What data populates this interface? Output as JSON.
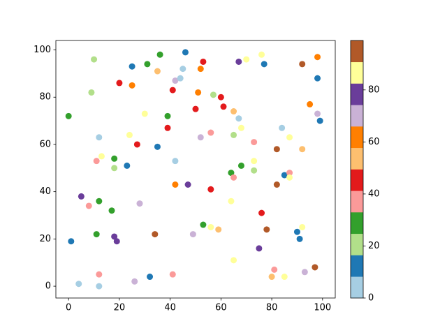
{
  "chart_data": {
    "type": "scatter",
    "x": [
      0,
      1,
      4,
      5,
      8,
      9,
      10,
      11,
      11,
      12,
      12,
      12,
      12,
      13,
      17,
      18,
      18,
      18,
      19,
      20,
      23,
      24,
      25,
      25,
      26,
      27,
      28,
      30,
      31,
      32,
      34,
      35,
      35,
      36,
      39,
      39,
      41,
      41,
      42,
      42,
      42,
      44,
      45,
      46,
      47,
      49,
      50,
      51,
      52,
      52,
      53,
      53,
      56,
      56,
      56,
      57,
      59,
      60,
      61,
      64,
      64,
      65,
      65,
      65,
      65,
      67,
      67,
      68,
      68,
      70,
      73,
      73,
      73,
      75,
      76,
      76,
      77,
      78,
      80,
      81,
      82,
      82,
      84,
      85,
      85,
      87,
      87,
      87,
      90,
      91,
      92,
      92,
      92,
      93,
      95,
      97,
      98,
      98,
      98,
      99
    ],
    "y": [
      72,
      19,
      1,
      38,
      34,
      82,
      96,
      53,
      22,
      36,
      63,
      5,
      0,
      55,
      32,
      54,
      50,
      21,
      19,
      86,
      51,
      64,
      93,
      85,
      2,
      60,
      35,
      73,
      94,
      4,
      22,
      91,
      59,
      98,
      72,
      67,
      83,
      5,
      87,
      53,
      43,
      88,
      92,
      99,
      43,
      22,
      75,
      82,
      92,
      63,
      95,
      26,
      65,
      41,
      25,
      81,
      24,
      80,
      76,
      48,
      36,
      74,
      64,
      46,
      11,
      95,
      71,
      67,
      51,
      96,
      61,
      53,
      49,
      16,
      98,
      31,
      94,
      24,
      4,
      7,
      58,
      43,
      67,
      47,
      4,
      63,
      48,
      46,
      23,
      20,
      94,
      58,
      25,
      6,
      77,
      8,
      97,
      88,
      73,
      70
    ],
    "c": [
      29,
      12,
      4,
      78,
      37,
      21,
      21,
      37,
      29,
      29,
      4,
      37,
      4,
      87,
      29,
      29,
      21,
      78,
      78,
      45,
      12,
      87,
      12,
      62,
      70,
      45,
      70,
      87,
      29,
      12,
      95,
      54,
      12,
      29,
      29,
      45,
      45,
      37,
      70,
      4,
      62,
      4,
      4,
      12,
      78,
      70,
      45,
      62,
      62,
      70,
      45,
      29,
      37,
      45,
      87,
      21,
      54,
      45,
      45,
      29,
      87,
      54,
      21,
      37,
      87,
      78,
      4,
      87,
      29,
      87,
      37,
      87,
      21,
      78,
      87,
      45,
      12,
      95,
      54,
      37,
      95,
      95,
      4,
      12,
      87,
      87,
      37,
      87,
      12,
      12,
      95,
      54,
      87,
      70,
      62,
      95,
      62,
      12,
      70,
      12
    ],
    "colormap": [
      "#a6cee3",
      "#1f78b4",
      "#b2df8a",
      "#33a02c",
      "#fb9a99",
      "#e31a1c",
      "#fdbf6f",
      "#ff7f00",
      "#cab2d6",
      "#6a3d9a",
      "#ffff99",
      "#b15928"
    ],
    "xlim": [
      -5,
      105
    ],
    "ylim": [
      -5,
      104
    ],
    "xticks": [
      0,
      20,
      40,
      60,
      80,
      100
    ],
    "yticks": [
      0,
      20,
      40,
      60,
      80,
      100
    ],
    "clim": [
      0,
      99
    ],
    "cticks": [
      0,
      20,
      40,
      60,
      80
    ]
  }
}
